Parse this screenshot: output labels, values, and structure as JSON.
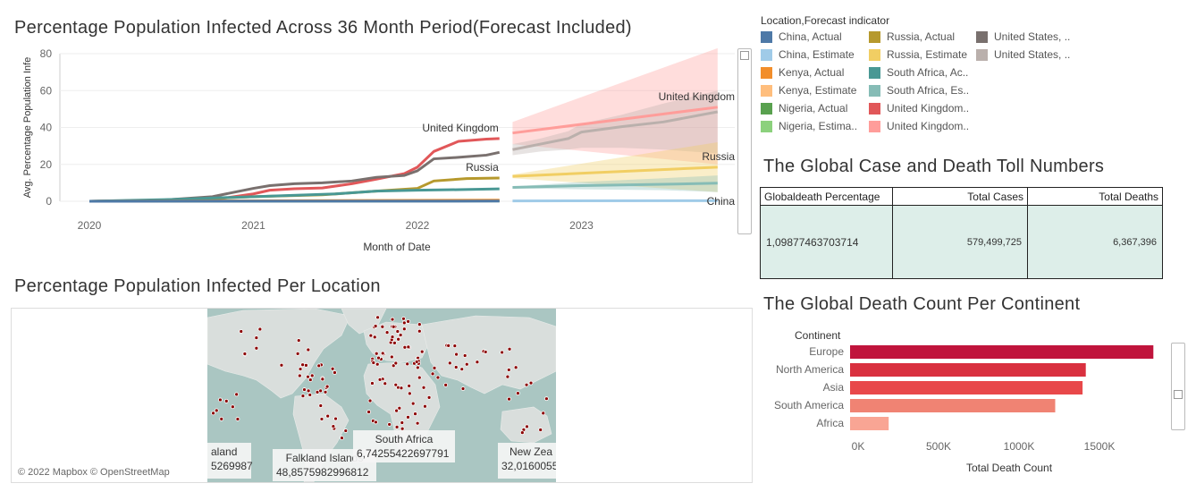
{
  "titles": {
    "line_chart": "Percentage Population Infected Across 36 Month Period(Forecast Included)",
    "map": "Percentage Population Infected Per Location",
    "toll": "The Global Case and Death Toll Numbers",
    "bar_chart": "The Global Death  Count Per Continent"
  },
  "legend": {
    "title": "Location,Forecast indicator",
    "items": [
      {
        "label": "China, Actual",
        "color": "#4e79a7"
      },
      {
        "label": "China, Estimate",
        "color": "#a0cbe8"
      },
      {
        "label": "Kenya, Actual",
        "color": "#f28e2b"
      },
      {
        "label": "Kenya, Estimate",
        "color": "#ffbe7d"
      },
      {
        "label": "Nigeria, Actual",
        "color": "#59a14f"
      },
      {
        "label": "Nigeria, Estima..",
        "color": "#8cd17d"
      },
      {
        "label": "Russia, Actual",
        "color": "#b6992d"
      },
      {
        "label": "Russia, Estimate",
        "color": "#f1ce63"
      },
      {
        "label": "South Africa, Ac..",
        "color": "#499894"
      },
      {
        "label": "South Africa, Es..",
        "color": "#86bcb6"
      },
      {
        "label": "United Kingdom..",
        "color": "#e15759"
      },
      {
        "label": "United Kingdom..",
        "color": "#ff9d9a"
      },
      {
        "label": "United States, ..",
        "color": "#79706e"
      },
      {
        "label": "United States, ..",
        "color": "#bab0ac"
      }
    ]
  },
  "toll": {
    "headers": [
      "Globaldeath Percentage",
      "Total Cases",
      "Total Deaths"
    ],
    "values": [
      "1,09877463703714",
      "579,499,725",
      "6,367,396"
    ]
  },
  "map": {
    "attribution": "© 2022 Mapbox © OpenStreetMap",
    "labels": [
      {
        "name": "aland",
        "value": "5269987"
      },
      {
        "name": "Falkland Islands",
        "value": "48,8575982996812"
      },
      {
        "name": "South Africa",
        "value": "6,74255422697791"
      },
      {
        "name": "New Zea",
        "value": "32,0160055"
      }
    ],
    "dot_color": "#8b0000"
  },
  "chart_data": [
    {
      "type": "line",
      "title": "Percentage Population Infected Across 36 Month Period(Forecast Included)",
      "xlabel": "Month of Date",
      "ylabel": "Avg. Percentage Population Infe",
      "ylim": [
        0,
        80
      ],
      "yticks": [
        "0",
        "20",
        "40",
        "60",
        "80"
      ],
      "xticks": [
        "2020",
        "2021",
        "2022",
        "2023"
      ],
      "x_domain": [
        2020,
        2023.83
      ],
      "grid": true,
      "annotations": [
        {
          "text": "United Kingdom",
          "x": 2022.5,
          "y": 34
        },
        {
          "text": "Russia",
          "x": 2022.5,
          "y": 12.6
        },
        {
          "text": "United Kingdom",
          "x": 2023.83,
          "y": 51
        },
        {
          "text": "Russia",
          "x": 2023.83,
          "y": 18.5
        },
        {
          "text": "China",
          "x": 2023.83,
          "y": 0
        }
      ],
      "series": [
        {
          "name": "United Kingdom, Actual",
          "color": "#e15759",
          "x": [
            2020,
            2020.5,
            2020.75,
            2021,
            2021.1,
            2021.25,
            2021.42,
            2021.6,
            2021.75,
            2021.92,
            2022.0,
            2022.1,
            2022.25,
            2022.42,
            2022.5
          ],
          "y": [
            0,
            0.2,
            0.8,
            4,
            6,
            6.8,
            7.2,
            9.5,
            12,
            15,
            18.5,
            27,
            32.5,
            33.7,
            34
          ]
        },
        {
          "name": "United States, Actual",
          "color": "#79706e",
          "x": [
            2020,
            2020.42,
            2020.75,
            2021,
            2021.1,
            2021.25,
            2021.42,
            2021.6,
            2021.75,
            2021.92,
            2022.0,
            2022.1,
            2022.25,
            2022.42,
            2022.5
          ],
          "y": [
            0,
            0.5,
            2.5,
            7,
            8.5,
            9.5,
            10,
            11,
            13,
            14,
            16.5,
            23,
            23.8,
            25,
            26.5
          ]
        },
        {
          "name": "Russia, Actual",
          "color": "#b6992d",
          "x": [
            2020,
            2020.5,
            2021,
            2021.42,
            2021.75,
            2022,
            2022.1,
            2022.3,
            2022.5
          ],
          "y": [
            0,
            0.5,
            2.5,
            3.5,
            5.5,
            7,
            11,
            12.3,
            12.6
          ]
        },
        {
          "name": "South Africa, Actual",
          "color": "#499894",
          "x": [
            2020,
            2020.5,
            2021,
            2021.5,
            2021.75,
            2022,
            2022.25,
            2022.5
          ],
          "y": [
            0,
            1,
            2.5,
            4,
            5.5,
            6,
            6.3,
            6.7
          ]
        },
        {
          "name": "Nigeria, Actual",
          "color": "#59a14f",
          "x": [
            2020,
            2022.5
          ],
          "y": [
            0,
            0.2
          ]
        },
        {
          "name": "Kenya, Actual",
          "color": "#f28e2b",
          "x": [
            2020,
            2022.5
          ],
          "y": [
            0,
            0.6
          ]
        },
        {
          "name": "China, Actual",
          "color": "#4e79a7",
          "x": [
            2020,
            2022.5
          ],
          "y": [
            0,
            0.1
          ]
        },
        {
          "name": "United Kingdom, Estimate",
          "color": "#ff9d9a",
          "x": [
            2022.58,
            2023.83
          ],
          "y": [
            37,
            51
          ],
          "band_low": [
            31,
            20
          ],
          "band_high": [
            43,
            83
          ]
        },
        {
          "name": "United States, Estimate",
          "color": "#bab0ac",
          "x": [
            2022.58,
            2022.75,
            2022.92,
            2023,
            2023.25,
            2023.5,
            2023.83
          ],
          "y": [
            28,
            31,
            34,
            37.5,
            40.5,
            43,
            48.5
          ],
          "band_low": [
            25,
            27,
            28,
            29,
            29,
            28,
            26
          ],
          "band_high": [
            31,
            34,
            38,
            42,
            47,
            53,
            60
          ]
        },
        {
          "name": "Russia, Estimate",
          "color": "#f1ce63",
          "x": [
            2022.58,
            2023.83
          ],
          "y": [
            13.5,
            18.5
          ],
          "band_low": [
            12.5,
            5
          ],
          "band_high": [
            14.5,
            32
          ]
        },
        {
          "name": "South Africa, Estimate",
          "color": "#86bcb6",
          "x": [
            2022.58,
            2023.0,
            2023.5,
            2023.83
          ],
          "y": [
            7.5,
            8.5,
            9.2,
            9.8
          ],
          "band_low": [
            7,
            6.5,
            6,
            5
          ],
          "band_high": [
            8,
            10.5,
            12.5,
            14
          ]
        },
        {
          "name": "China, Estimate",
          "color": "#a0cbe8",
          "x": [
            2022.58,
            2023.83
          ],
          "y": [
            0.2,
            0.3
          ]
        }
      ]
    },
    {
      "type": "bar",
      "title": "The Global Death  Count Per Continent",
      "orientation": "horizontal",
      "category_label": "Continent",
      "xlabel": "Total Death Count",
      "categories": [
        "Europe",
        "North America",
        "Asia",
        "South America",
        "Africa"
      ],
      "values": [
        1885000,
        1465000,
        1445000,
        1275000,
        240000
      ],
      "colors": [
        "#c0143c",
        "#d9303f",
        "#e8484a",
        "#f08373",
        "#f9a594"
      ],
      "xlim": [
        0,
        2000000
      ],
      "xticks": [
        {
          "value": 0,
          "label": "0K"
        },
        {
          "value": 500000,
          "label": "500K"
        },
        {
          "value": 1000000,
          "label": "1000K"
        },
        {
          "value": 1500000,
          "label": "1500K"
        }
      ]
    }
  ]
}
